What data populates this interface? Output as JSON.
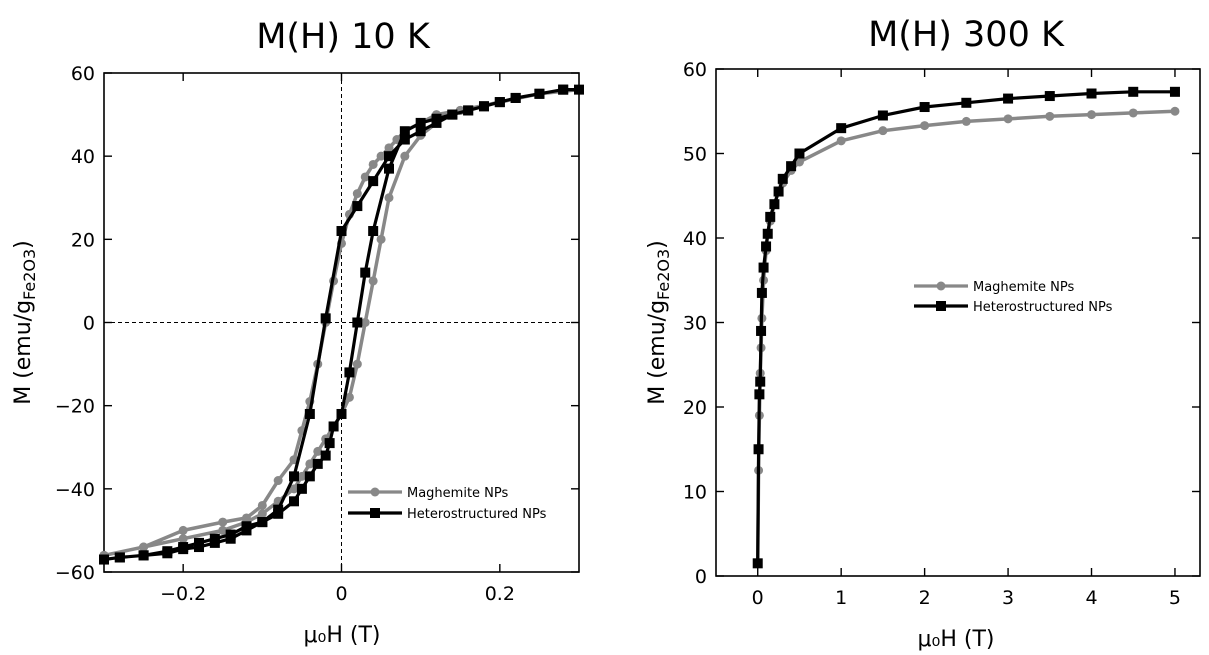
{
  "chart_data": [
    {
      "type": "line",
      "title": "M(H) 10 K",
      "xlabel": "μ₀H (T)",
      "ylabel": "M (emu/g",
      "ylabel_sub": "Fe2O3",
      "ylabel_end": ")",
      "xlim": [
        -0.3,
        0.3
      ],
      "ylim": [
        -60,
        60
      ],
      "xticks": [
        -0.2,
        0,
        0.2
      ],
      "xtick_labels": [
        "−0.2",
        "0",
        "0.2"
      ],
      "yticks": [
        -60,
        -40,
        -20,
        0,
        20,
        40,
        60
      ],
      "ytick_labels": [
        "−60",
        "−40",
        "−20",
        "0",
        "20",
        "40",
        "60"
      ],
      "reference_lines": {
        "x": 0,
        "y": 0,
        "style": "dashed"
      },
      "legend_position": "lower-right",
      "series": [
        {
          "name": "Maghemite NPs",
          "color": "#888888",
          "marker": "circle",
          "x": [
            -0.3,
            -0.25,
            -0.2,
            -0.15,
            -0.12,
            -0.1,
            -0.08,
            -0.06,
            -0.05,
            -0.04,
            -0.03,
            -0.02,
            -0.01,
            0,
            0.01,
            0.02,
            0.03,
            0.04,
            0.05,
            0.06,
            0.07,
            0.08,
            0.1,
            0.12,
            0.15,
            0.2,
            0.25,
            0.3,
            0.25,
            0.2,
            0.15,
            0.12,
            0.1,
            0.08,
            0.06,
            0.05,
            0.04,
            0.03,
            0.02,
            0.01,
            0,
            -0.01,
            -0.02,
            -0.03,
            -0.04,
            -0.05,
            -0.06,
            -0.08,
            -0.1,
            -0.12,
            -0.15,
            -0.2,
            -0.25,
            -0.3
          ],
          "y": [
            -56,
            -54,
            -50,
            -48,
            -47,
            -44,
            -38,
            -33,
            -26,
            -19,
            -10,
            0,
            10,
            19,
            26,
            31,
            35,
            38,
            40,
            42,
            44,
            46,
            48,
            50,
            51,
            53,
            55,
            56,
            55,
            53,
            51,
            48,
            45,
            40,
            30,
            20,
            10,
            0,
            -10,
            -18,
            -22,
            -25,
            -28,
            -31,
            -34,
            -37,
            -40,
            -43,
            -46,
            -48,
            -50,
            -52,
            -54,
            -56
          ]
        },
        {
          "name": "Heterostructured NPs",
          "color": "#000000",
          "marker": "square",
          "x": [
            -0.3,
            -0.28,
            -0.25,
            -0.22,
            -0.2,
            -0.18,
            -0.16,
            -0.14,
            -0.12,
            -0.1,
            -0.08,
            -0.06,
            -0.04,
            -0.02,
            0,
            0.02,
            0.04,
            0.06,
            0.08,
            0.1,
            0.12,
            0.14,
            0.16,
            0.18,
            0.2,
            0.22,
            0.25,
            0.28,
            0.3,
            0.28,
            0.25,
            0.22,
            0.2,
            0.18,
            0.16,
            0.14,
            0.12,
            0.1,
            0.08,
            0.06,
            0.04,
            0.03,
            0.02,
            0.01,
            0,
            -0.01,
            -0.015,
            -0.02,
            -0.03,
            -0.04,
            -0.05,
            -0.06,
            -0.08,
            -0.1,
            -0.12,
            -0.14,
            -0.16,
            -0.18,
            -0.2,
            -0.22,
            -0.25,
            -0.28,
            -0.3
          ],
          "y": [
            -57,
            -56.5,
            -56,
            -55.5,
            -54.5,
            -54,
            -53,
            -52,
            -50,
            -48,
            -45,
            -37,
            -22,
            1,
            22,
            28,
            34,
            40,
            44,
            46,
            48,
            50,
            51,
            52,
            53,
            54,
            55,
            56,
            56,
            56,
            55,
            54,
            53,
            52,
            51,
            50,
            49,
            48,
            46,
            37,
            22,
            12,
            0,
            -12,
            -22,
            -25,
            -29,
            -32,
            -34,
            -37,
            -40,
            -43,
            -46,
            -48,
            -49,
            -51,
            -52,
            -53,
            -54,
            -55,
            -56,
            -56.5,
            -57
          ]
        }
      ]
    },
    {
      "type": "line",
      "title": "M(H) 300 K",
      "xlabel": "μ₀H (T)",
      "ylabel": "M (emu/g",
      "ylabel_sub": "Fe2O3",
      "ylabel_end": ")",
      "xlim": [
        -0.5,
        5.3
      ],
      "ylim": [
        0,
        60
      ],
      "xticks": [
        0,
        1,
        2,
        3,
        4,
        5
      ],
      "xtick_labels": [
        "0",
        "1",
        "2",
        "3",
        "4",
        "5"
      ],
      "yticks": [
        0,
        10,
        20,
        30,
        40,
        50,
        60
      ],
      "ytick_labels": [
        "0",
        "10",
        "20",
        "30",
        "40",
        "50",
        "60"
      ],
      "legend_position": "center-right",
      "series": [
        {
          "name": "Maghemite NPs",
          "color": "#888888",
          "marker": "circle",
          "x": [
            0,
            0.01,
            0.02,
            0.03,
            0.04,
            0.05,
            0.07,
            0.1,
            0.12,
            0.15,
            0.2,
            0.25,
            0.3,
            0.4,
            0.5,
            1,
            1.5,
            2,
            2.5,
            3,
            3.5,
            4,
            4.5,
            5
          ],
          "y": [
            1.5,
            12.5,
            19,
            24,
            27,
            30.5,
            35,
            38.5,
            40.5,
            42,
            44,
            45.5,
            46.5,
            48,
            49,
            51.5,
            52.7,
            53.3,
            53.8,
            54.1,
            54.4,
            54.6,
            54.8,
            55
          ]
        },
        {
          "name": "Heterostructured NPs",
          "color": "#000000",
          "marker": "square",
          "x": [
            0,
            0.01,
            0.02,
            0.03,
            0.04,
            0.05,
            0.07,
            0.1,
            0.12,
            0.15,
            0.2,
            0.25,
            0.3,
            0.4,
            0.5,
            1,
            1.5,
            2,
            2.5,
            3,
            3.5,
            4,
            4.5,
            5
          ],
          "y": [
            1.5,
            15,
            21.5,
            23,
            29,
            33.5,
            36.5,
            39,
            40.5,
            42.5,
            44,
            45.5,
            47,
            48.5,
            50,
            53,
            54.5,
            55.5,
            56,
            56.5,
            56.8,
            57.1,
            57.3,
            57.3
          ]
        }
      ]
    }
  ]
}
